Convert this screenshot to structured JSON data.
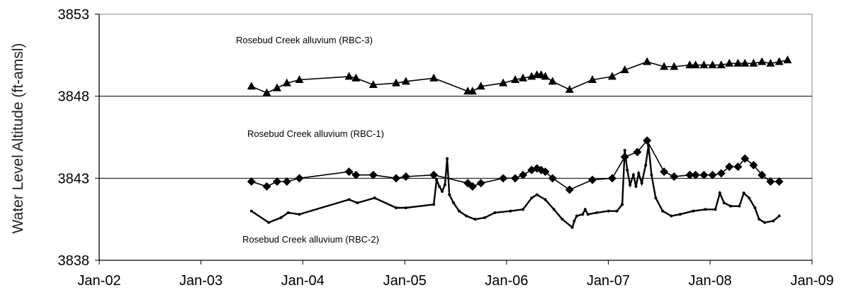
{
  "chart_data": {
    "type": "line",
    "title": "",
    "xlabel": "",
    "ylabel": "Water Level Altitude (ft-amsl)",
    "ylim": [
      3838,
      3853
    ],
    "xlim": [
      "2002-01-01",
      "2009-01-01"
    ],
    "grid": "horizontal gridlines at 3843 and 3848",
    "legend": "none; series identified by text annotations",
    "x_ticks": [
      "Jan-02",
      "Jan-03",
      "Jan-04",
      "Jan-05",
      "Jan-06",
      "Jan-07",
      "Jan-08",
      "Jan-09"
    ],
    "y_ticks": [
      3838,
      3843,
      3848,
      3853
    ],
    "series": [
      {
        "name": "Rosebud Creek alluvium (RBC-3)",
        "marker": "triangle",
        "color": "#000000",
        "points": [
          [
            "2003-07-01",
            3848.6
          ],
          [
            "2003-08-25",
            3848.2
          ],
          [
            "2003-10-01",
            3848.5
          ],
          [
            "2003-11-05",
            3848.8
          ],
          [
            "2003-12-20",
            3849.0
          ],
          [
            "2004-06-15",
            3849.2
          ],
          [
            "2004-07-10",
            3849.1
          ],
          [
            "2004-09-10",
            3848.7
          ],
          [
            "2004-12-01",
            3848.8
          ],
          [
            "2005-01-05",
            3848.9
          ],
          [
            "2005-04-15",
            3849.1
          ],
          [
            "2005-08-15",
            3848.3
          ],
          [
            "2005-09-01",
            3848.3
          ],
          [
            "2005-10-01",
            3848.6
          ],
          [
            "2005-12-20",
            3848.8
          ],
          [
            "2006-02-01",
            3849.0
          ],
          [
            "2006-03-01",
            3849.1
          ],
          [
            "2006-04-01",
            3849.2
          ],
          [
            "2006-04-20",
            3849.3
          ],
          [
            "2006-05-05",
            3849.3
          ],
          [
            "2006-05-20",
            3849.2
          ],
          [
            "2006-06-15",
            3848.9
          ],
          [
            "2006-08-15",
            3848.4
          ],
          [
            "2006-11-05",
            3849.0
          ],
          [
            "2007-01-15",
            3849.2
          ],
          [
            "2007-03-01",
            3849.6
          ],
          [
            "2007-05-20",
            3850.1
          ],
          [
            "2007-07-20",
            3849.8
          ],
          [
            "2007-08-25",
            3849.8
          ],
          [
            "2007-10-20",
            3849.9
          ],
          [
            "2007-11-10",
            3849.9
          ],
          [
            "2007-12-10",
            3849.9
          ],
          [
            "2008-01-10",
            3849.9
          ],
          [
            "2008-02-10",
            3849.9
          ],
          [
            "2008-03-10",
            3850.0
          ],
          [
            "2008-04-10",
            3850.0
          ],
          [
            "2008-05-05",
            3850.0
          ],
          [
            "2008-06-05",
            3850.0
          ],
          [
            "2008-07-05",
            3850.1
          ],
          [
            "2008-08-05",
            3850.0
          ],
          [
            "2008-09-05",
            3850.1
          ],
          [
            "2008-10-05",
            3850.2
          ]
        ]
      },
      {
        "name": "Rosebud Creek alluvium (RBC-1)",
        "marker": "diamond",
        "color": "#000000",
        "points": [
          [
            "2003-07-01",
            3842.8
          ],
          [
            "2003-08-25",
            3842.5
          ],
          [
            "2003-10-01",
            3842.8
          ],
          [
            "2003-11-05",
            3842.8
          ],
          [
            "2003-12-20",
            3843.0
          ],
          [
            "2004-06-15",
            3843.4
          ],
          [
            "2004-07-10",
            3843.2
          ],
          [
            "2004-09-10",
            3843.2
          ],
          [
            "2004-12-01",
            3843.0
          ],
          [
            "2005-01-05",
            3843.1
          ],
          [
            "2005-04-15",
            3843.2
          ],
          [
            "2005-08-15",
            3842.7
          ],
          [
            "2005-09-01",
            3842.5
          ],
          [
            "2005-10-01",
            3842.7
          ],
          [
            "2005-12-20",
            3843.0
          ],
          [
            "2006-02-01",
            3843.0
          ],
          [
            "2006-03-01",
            3843.2
          ],
          [
            "2006-04-01",
            3843.5
          ],
          [
            "2006-04-20",
            3843.6
          ],
          [
            "2006-05-05",
            3843.5
          ],
          [
            "2006-05-20",
            3843.4
          ],
          [
            "2006-06-15",
            3843.0
          ],
          [
            "2006-08-15",
            3842.3
          ],
          [
            "2006-11-05",
            3842.9
          ],
          [
            "2007-01-15",
            3843.0
          ],
          [
            "2007-03-01",
            3844.3
          ],
          [
            "2007-04-15",
            3844.6
          ],
          [
            "2007-05-20",
            3845.3
          ],
          [
            "2007-07-20",
            3843.4
          ],
          [
            "2007-08-25",
            3843.1
          ],
          [
            "2007-10-20",
            3843.2
          ],
          [
            "2007-11-10",
            3843.2
          ],
          [
            "2007-12-10",
            3843.2
          ],
          [
            "2008-01-10",
            3843.2
          ],
          [
            "2008-02-10",
            3843.3
          ],
          [
            "2008-03-10",
            3843.7
          ],
          [
            "2008-04-10",
            3843.7
          ],
          [
            "2008-05-05",
            3844.2
          ],
          [
            "2008-06-05",
            3843.8
          ],
          [
            "2008-07-05",
            3843.2
          ],
          [
            "2008-08-05",
            3842.8
          ],
          [
            "2008-09-05",
            3842.8
          ]
        ]
      },
      {
        "name": "Rosebud Creek alluvium (RBC-2)",
        "marker": "small-dot",
        "color": "#000000",
        "points": [
          [
            "2003-07-01",
            3841.0
          ],
          [
            "2003-09-01",
            3840.3
          ],
          [
            "2003-10-15",
            3840.6
          ],
          [
            "2003-11-10",
            3840.9
          ],
          [
            "2003-12-20",
            3840.8
          ],
          [
            "2004-06-15",
            3841.7
          ],
          [
            "2004-07-15",
            3841.5
          ],
          [
            "2004-09-15",
            3841.8
          ],
          [
            "2004-12-01",
            3841.2
          ],
          [
            "2005-01-05",
            3841.2
          ],
          [
            "2005-04-15",
            3841.4
          ],
          [
            "2005-04-25",
            3842.9
          ],
          [
            "2005-05-05",
            3842.5
          ],
          [
            "2005-05-15",
            3842.2
          ],
          [
            "2005-05-25",
            3842.6
          ],
          [
            "2005-06-02",
            3844.2
          ],
          [
            "2005-06-10",
            3842.0
          ],
          [
            "2005-06-25",
            3841.5
          ],
          [
            "2005-07-15",
            3841.0
          ],
          [
            "2005-08-10",
            3840.7
          ],
          [
            "2005-09-10",
            3840.5
          ],
          [
            "2005-10-15",
            3840.6
          ],
          [
            "2005-11-20",
            3840.9
          ],
          [
            "2006-01-15",
            3841.0
          ],
          [
            "2006-03-01",
            3841.1
          ],
          [
            "2006-04-01",
            3841.8
          ],
          [
            "2006-04-20",
            3842.0
          ],
          [
            "2006-05-20",
            3841.7
          ],
          [
            "2006-06-20",
            3841.1
          ],
          [
            "2006-07-20",
            3840.5
          ],
          [
            "2006-08-25",
            3840.0
          ],
          [
            "2006-09-01",
            3840.4
          ],
          [
            "2006-09-10",
            3840.7
          ],
          [
            "2006-10-01",
            3840.8
          ],
          [
            "2006-10-10",
            3841.1
          ],
          [
            "2006-10-20",
            3840.8
          ],
          [
            "2006-11-20",
            3840.9
          ],
          [
            "2007-01-01",
            3841.0
          ],
          [
            "2007-02-01",
            3841.0
          ],
          [
            "2007-02-20",
            3841.4
          ],
          [
            "2007-03-01",
            3844.7
          ],
          [
            "2007-03-10",
            3843.5
          ],
          [
            "2007-03-20",
            3842.6
          ],
          [
            "2007-04-01",
            3843.2
          ],
          [
            "2007-04-10",
            3842.5
          ],
          [
            "2007-04-20",
            3843.3
          ],
          [
            "2007-05-01",
            3842.7
          ],
          [
            "2007-05-15",
            3843.8
          ],
          [
            "2007-05-25",
            3845.0
          ],
          [
            "2007-06-05",
            3843.2
          ],
          [
            "2007-06-20",
            3841.8
          ],
          [
            "2007-07-15",
            3841.0
          ],
          [
            "2007-08-15",
            3840.7
          ],
          [
            "2007-09-15",
            3840.8
          ],
          [
            "2007-11-01",
            3841.0
          ],
          [
            "2007-12-15",
            3841.1
          ],
          [
            "2008-01-20",
            3841.1
          ],
          [
            "2008-02-05",
            3842.1
          ],
          [
            "2008-02-20",
            3841.5
          ],
          [
            "2008-03-15",
            3841.3
          ],
          [
            "2008-04-15",
            3841.3
          ],
          [
            "2008-05-01",
            3842.1
          ],
          [
            "2008-05-20",
            3841.8
          ],
          [
            "2008-06-10",
            3841.2
          ],
          [
            "2008-06-25",
            3840.5
          ],
          [
            "2008-07-15",
            3840.3
          ],
          [
            "2008-08-15",
            3840.4
          ],
          [
            "2008-09-05",
            3840.7
          ]
        ]
      }
    ],
    "annotations": [
      "Rosebud Creek alluvium (RBC-3)",
      "Rosebud Creek alluvium (RBC-1)",
      "Rosebud Creek alluvium (RBC-2)"
    ]
  }
}
